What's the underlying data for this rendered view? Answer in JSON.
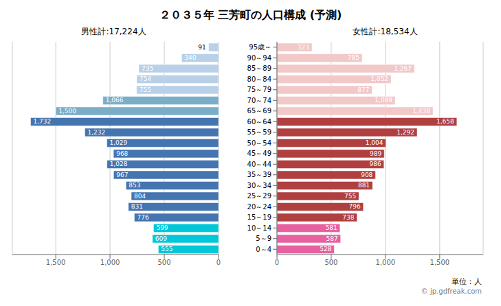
{
  "chart_data": {
    "type": "bar",
    "orientation": "horizontal",
    "title": "２０３５年 三芳町の人口構成 (予測)",
    "annotations": [
      "男性計:17,224人",
      "女性計:18,534人",
      "単位：人",
      "© jp.gdfreak.com"
    ],
    "categories": [
      "95歳～",
      "90～94",
      "85～89",
      "80～84",
      "75～79",
      "70～74",
      "65～69",
      "60～64",
      "55～59",
      "50～54",
      "45～49",
      "40～44",
      "35～39",
      "30～34",
      "25～29",
      "20～24",
      "15～19",
      "10～14",
      "5～9",
      "0～4"
    ],
    "series": [
      {
        "colors": [
          "#b8d0e8",
          "#b8d0e8",
          "#b8d0e8",
          "#b8d0e8",
          "#b8d0e8",
          "#7aaec8",
          "#7aaec8",
          "#4575b0",
          "#4575b0",
          "#4575b0",
          "#4575b0",
          "#4575b0",
          "#4575b0",
          "#4575b0",
          "#4575b0",
          "#4575b0",
          "#4575b0",
          "#00c8d8",
          "#00c8d8",
          "#00c8d8"
        ],
        "values": [
          91,
          340,
          735,
          754,
          755,
          1066,
          1500,
          1732,
          1232,
          1029,
          968,
          1028,
          967,
          853,
          804,
          831,
          776,
          599,
          609,
          555
        ],
        "value_labels": [
          "91",
          "340",
          "735",
          "754",
          "755",
          "1,066",
          "1,500",
          "1,732",
          "1,232",
          "1,029",
          "968",
          "1,028",
          "967",
          "853",
          "804",
          "831",
          "776",
          "599",
          "609",
          "555"
        ]
      },
      {
        "colors": [
          "#f2c8c8",
          "#f2c8c8",
          "#f2c8c8",
          "#f2c8c8",
          "#f2c8c8",
          "#f2c8c8",
          "#f2c8c8",
          "#b04040",
          "#b04040",
          "#b04040",
          "#b04040",
          "#b04040",
          "#b04040",
          "#b04040",
          "#b04040",
          "#b04040",
          "#b04040",
          "#e860a0",
          "#e860a0",
          "#e860a0"
        ],
        "values": [
          323,
          785,
          1267,
          1052,
          877,
          1089,
          1438,
          1658,
          1292,
          1004,
          989,
          986,
          908,
          881,
          755,
          796,
          738,
          581,
          587,
          528
        ],
        "value_labels": [
          "323",
          "785",
          "1,267",
          "1,052",
          "877",
          "1,089",
          "1,438",
          "1,658",
          "1,292",
          "1,004",
          "989",
          "986",
          "908",
          "881",
          "755",
          "796",
          "738",
          "581",
          "587",
          "528"
        ]
      }
    ],
    "xlim": [
      0,
      1900
    ],
    "xticks": [
      0,
      500,
      {
        "value": 1000,
        "label": "1,000"
      },
      {
        "value": 1500,
        "label": "1,500"
      }
    ],
    "grid": true,
    "data_labels": true
  }
}
